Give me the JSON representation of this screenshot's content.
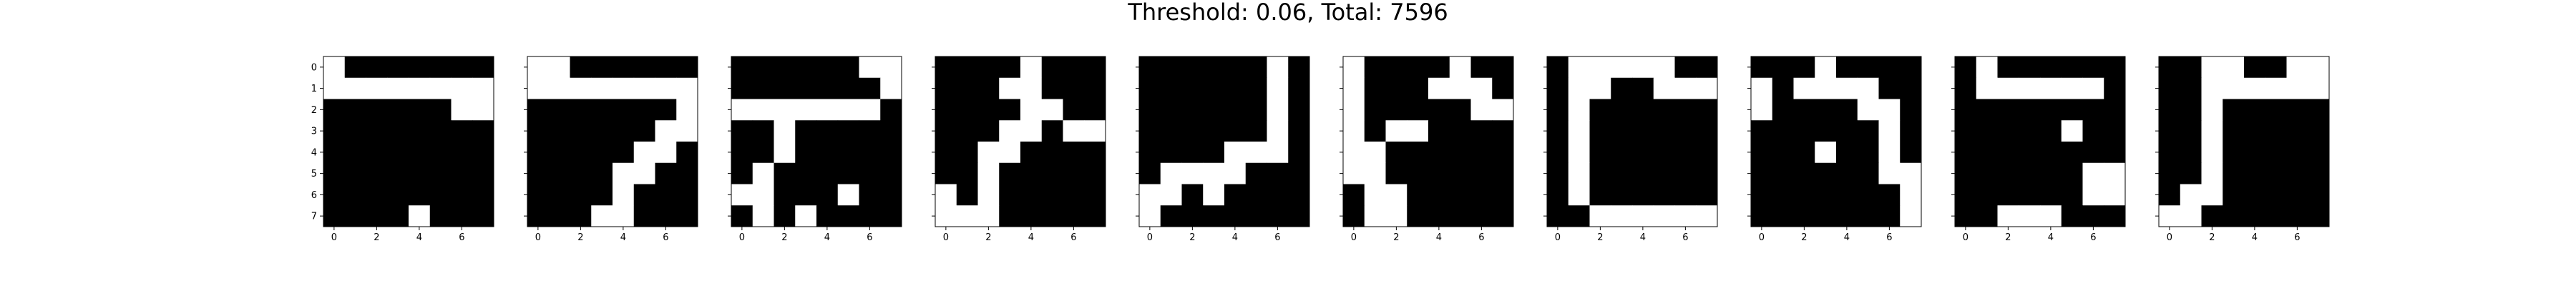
{
  "title": "Threshold: 0.06, Total: 7596",
  "colors": {
    "on": "#ffffff",
    "off": "#000000",
    "frame": "#000000"
  },
  "chart_data": {
    "type": "heatmap",
    "title": "Threshold: 0.06, Total: 7596",
    "grid_size": 8,
    "xticks": [
      0,
      2,
      4,
      6
    ],
    "yticks": [
      0,
      1,
      2,
      3,
      4,
      5,
      6,
      7
    ],
    "colormap": "gray (0 = black, 1 = white)",
    "panels": [
      {
        "matrix": [
          [
            1,
            0,
            0,
            0,
            0,
            0,
            0,
            0
          ],
          [
            1,
            1,
            1,
            1,
            1,
            1,
            1,
            1
          ],
          [
            0,
            0,
            0,
            0,
            0,
            0,
            1,
            1
          ],
          [
            0,
            0,
            0,
            0,
            0,
            0,
            0,
            0
          ],
          [
            0,
            0,
            0,
            0,
            0,
            0,
            0,
            0
          ],
          [
            0,
            0,
            0,
            0,
            0,
            0,
            0,
            0
          ],
          [
            0,
            0,
            0,
            0,
            0,
            0,
            0,
            0
          ],
          [
            0,
            0,
            0,
            0,
            1,
            0,
            0,
            0
          ]
        ]
      },
      {
        "matrix": [
          [
            1,
            1,
            0,
            0,
            0,
            0,
            0,
            0
          ],
          [
            1,
            1,
            1,
            1,
            1,
            1,
            1,
            1
          ],
          [
            0,
            0,
            0,
            0,
            0,
            0,
            0,
            1
          ],
          [
            0,
            0,
            0,
            0,
            0,
            0,
            1,
            1
          ],
          [
            0,
            0,
            0,
            0,
            0,
            1,
            1,
            0
          ],
          [
            0,
            0,
            0,
            0,
            1,
            1,
            0,
            0
          ],
          [
            0,
            0,
            0,
            0,
            1,
            0,
            0,
            0
          ],
          [
            0,
            0,
            0,
            1,
            1,
            0,
            0,
            0
          ]
        ]
      },
      {
        "matrix": [
          [
            0,
            0,
            0,
            0,
            0,
            0,
            1,
            1
          ],
          [
            0,
            0,
            0,
            0,
            0,
            0,
            0,
            1
          ],
          [
            1,
            1,
            1,
            1,
            1,
            1,
            1,
            0
          ],
          [
            0,
            0,
            1,
            0,
            0,
            0,
            0,
            0
          ],
          [
            0,
            0,
            1,
            0,
            0,
            0,
            0,
            0
          ],
          [
            0,
            1,
            0,
            0,
            0,
            0,
            0,
            0
          ],
          [
            1,
            1,
            0,
            0,
            0,
            1,
            0,
            0
          ],
          [
            0,
            1,
            0,
            1,
            0,
            0,
            0,
            0
          ]
        ]
      },
      {
        "matrix": [
          [
            0,
            0,
            0,
            0,
            1,
            0,
            0,
            0
          ],
          [
            0,
            0,
            0,
            1,
            1,
            0,
            0,
            0
          ],
          [
            0,
            0,
            0,
            0,
            1,
            1,
            0,
            0
          ],
          [
            0,
            0,
            0,
            1,
            1,
            0,
            1,
            1
          ],
          [
            0,
            0,
            1,
            1,
            0,
            0,
            0,
            0
          ],
          [
            0,
            0,
            1,
            0,
            0,
            0,
            0,
            0
          ],
          [
            1,
            0,
            1,
            0,
            0,
            0,
            0,
            0
          ],
          [
            1,
            1,
            1,
            0,
            0,
            0,
            0,
            0
          ]
        ]
      },
      {
        "matrix": [
          [
            0,
            0,
            0,
            0,
            0,
            0,
            1,
            0
          ],
          [
            0,
            0,
            0,
            0,
            0,
            0,
            1,
            0
          ],
          [
            0,
            0,
            0,
            0,
            0,
            0,
            1,
            0
          ],
          [
            0,
            0,
            0,
            0,
            0,
            0,
            1,
            0
          ],
          [
            0,
            0,
            0,
            0,
            1,
            1,
            1,
            0
          ],
          [
            0,
            1,
            1,
            1,
            1,
            0,
            0,
            0
          ],
          [
            1,
            1,
            0,
            1,
            0,
            0,
            0,
            0
          ],
          [
            1,
            0,
            0,
            0,
            0,
            0,
            0,
            0
          ]
        ]
      },
      {
        "matrix": [
          [
            1,
            0,
            0,
            0,
            0,
            1,
            0,
            0
          ],
          [
            1,
            0,
            0,
            0,
            1,
            1,
            1,
            0
          ],
          [
            1,
            0,
            0,
            0,
            0,
            0,
            1,
            1
          ],
          [
            1,
            0,
            1,
            1,
            0,
            0,
            0,
            0
          ],
          [
            1,
            1,
            0,
            0,
            0,
            0,
            0,
            0
          ],
          [
            1,
            1,
            0,
            0,
            0,
            0,
            0,
            0
          ],
          [
            0,
            1,
            1,
            0,
            0,
            0,
            0,
            0
          ],
          [
            0,
            1,
            1,
            0,
            0,
            0,
            0,
            0
          ]
        ]
      },
      {
        "matrix": [
          [
            0,
            1,
            1,
            1,
            1,
            1,
            0,
            0
          ],
          [
            0,
            1,
            1,
            0,
            0,
            1,
            1,
            1
          ],
          [
            0,
            1,
            0,
            0,
            0,
            0,
            0,
            0
          ],
          [
            0,
            1,
            0,
            0,
            0,
            0,
            0,
            0
          ],
          [
            0,
            1,
            0,
            0,
            0,
            0,
            0,
            0
          ],
          [
            0,
            1,
            0,
            0,
            0,
            0,
            0,
            0
          ],
          [
            0,
            1,
            0,
            0,
            0,
            0,
            0,
            0
          ],
          [
            0,
            0,
            1,
            1,
            1,
            1,
            1,
            1
          ]
        ]
      },
      {
        "matrix": [
          [
            0,
            0,
            0,
            1,
            0,
            0,
            0,
            0
          ],
          [
            1,
            0,
            1,
            1,
            1,
            1,
            0,
            0
          ],
          [
            1,
            0,
            0,
            0,
            0,
            1,
            1,
            0
          ],
          [
            0,
            0,
            0,
            0,
            0,
            0,
            1,
            0
          ],
          [
            0,
            0,
            0,
            1,
            0,
            0,
            1,
            0
          ],
          [
            0,
            0,
            0,
            0,
            0,
            0,
            1,
            1
          ],
          [
            0,
            0,
            0,
            0,
            0,
            0,
            0,
            1
          ],
          [
            0,
            0,
            0,
            0,
            0,
            0,
            0,
            1
          ]
        ]
      },
      {
        "matrix": [
          [
            0,
            1,
            0,
            0,
            0,
            0,
            0,
            0
          ],
          [
            0,
            1,
            1,
            1,
            1,
            1,
            1,
            0
          ],
          [
            0,
            0,
            0,
            0,
            0,
            0,
            0,
            0
          ],
          [
            0,
            0,
            0,
            0,
            0,
            1,
            0,
            0
          ],
          [
            0,
            0,
            0,
            0,
            0,
            0,
            0,
            0
          ],
          [
            0,
            0,
            0,
            0,
            0,
            0,
            1,
            1
          ],
          [
            0,
            0,
            0,
            0,
            0,
            0,
            1,
            1
          ],
          [
            0,
            0,
            1,
            1,
            1,
            0,
            0,
            0
          ]
        ]
      },
      {
        "matrix": [
          [
            0,
            0,
            1,
            1,
            0,
            0,
            1,
            1
          ],
          [
            0,
            0,
            1,
            1,
            1,
            1,
            1,
            1
          ],
          [
            0,
            0,
            1,
            0,
            0,
            0,
            0,
            0
          ],
          [
            0,
            0,
            1,
            0,
            0,
            0,
            0,
            0
          ],
          [
            0,
            0,
            1,
            0,
            0,
            0,
            0,
            0
          ],
          [
            0,
            0,
            1,
            0,
            0,
            0,
            0,
            0
          ],
          [
            0,
            1,
            1,
            0,
            0,
            0,
            0,
            0
          ],
          [
            1,
            1,
            0,
            0,
            0,
            0,
            0,
            0
          ]
        ]
      }
    ]
  }
}
